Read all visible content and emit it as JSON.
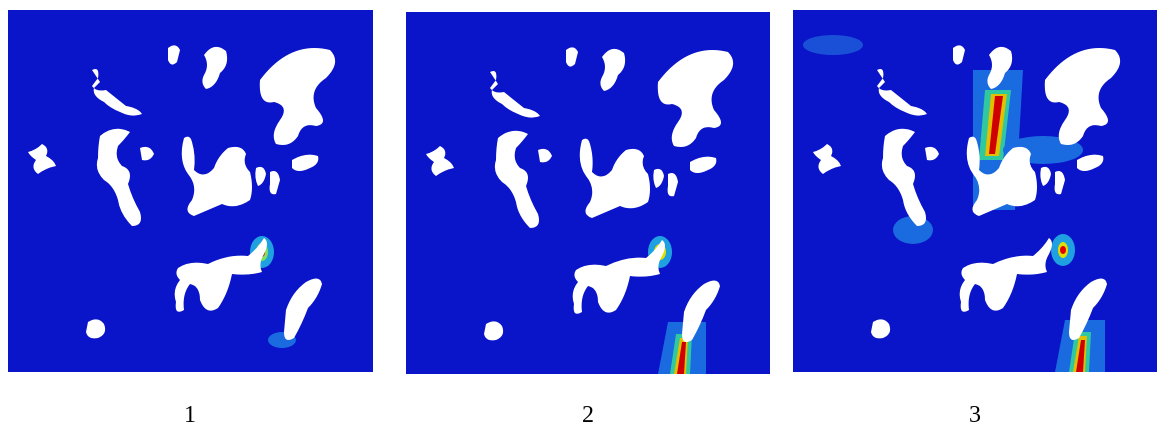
{
  "panels": [
    {
      "label": "1"
    },
    {
      "label": "2"
    },
    {
      "label": "3"
    }
  ]
}
